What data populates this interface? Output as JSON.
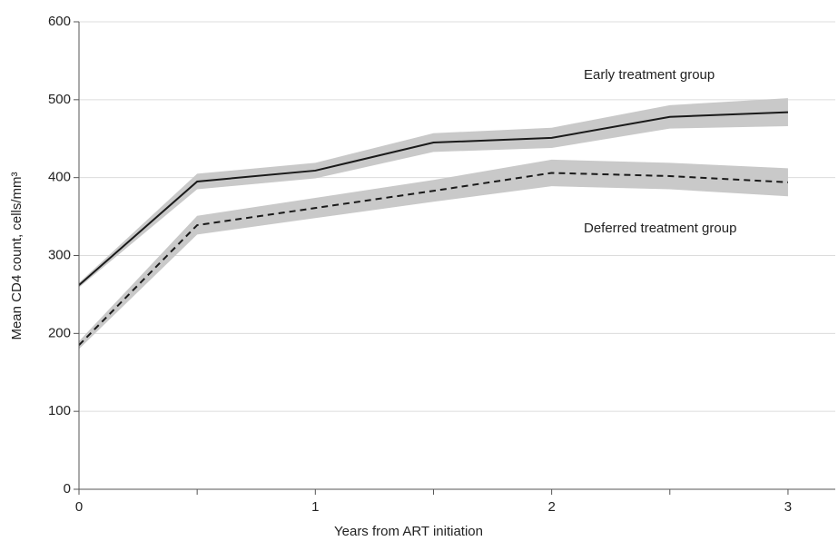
{
  "chart_data": {
    "type": "line",
    "ylabel": "Mean CD4 count, cells/mm³",
    "xlabel": "Years from ART initiation",
    "x": [
      0,
      0.5,
      1,
      1.5,
      2,
      2.5,
      3
    ],
    "xlim": [
      0,
      3.2
    ],
    "xticks": [
      0,
      1,
      2,
      3
    ],
    "ylim": [
      0,
      600
    ],
    "yticks": [
      0,
      100,
      200,
      300,
      400,
      500,
      600
    ],
    "grid": true,
    "band_color": "#c9c9c9",
    "series": [
      {
        "name": "Early treatment group",
        "color": "#1a1a1a",
        "style": "solid",
        "values": [
          262,
          395,
          409,
          445,
          451,
          478,
          484
        ],
        "lower": [
          259,
          385,
          399,
          433,
          438,
          463,
          466
        ],
        "upper": [
          265,
          405,
          419,
          457,
          464,
          493,
          502
        ]
      },
      {
        "name": "Deferred treatment group",
        "color": "#1a1a1a",
        "style": "dashed",
        "values": [
          185,
          339,
          361,
          383,
          406,
          402,
          394
        ],
        "lower": [
          180,
          327,
          348,
          369,
          389,
          385,
          376
        ],
        "upper": [
          190,
          351,
          374,
          397,
          423,
          419,
          412
        ]
      }
    ]
  }
}
